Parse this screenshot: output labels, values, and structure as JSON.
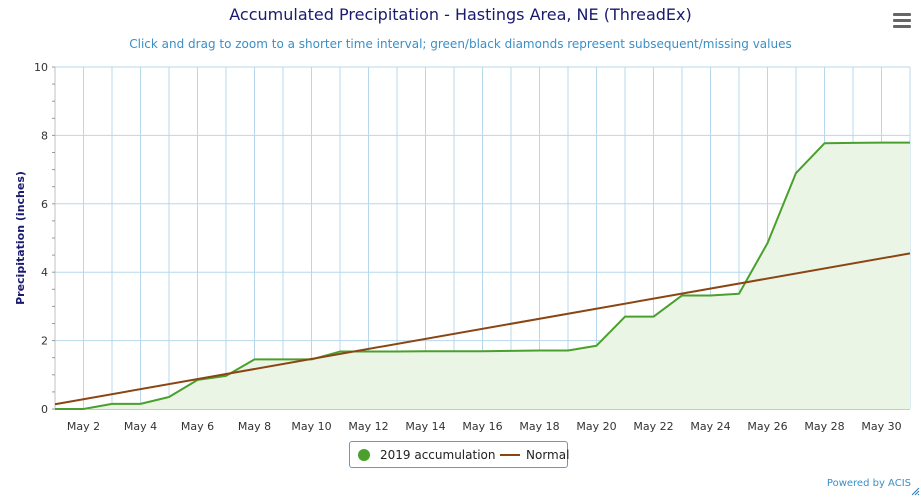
{
  "header": {
    "title": "Accumulated Precipitation - Hastings Area, NE (ThreadEx)",
    "subtitle": "Click and drag to zoom to a shorter time interval; green/black diamonds represent subsequent/missing values",
    "menu_icon": "hamburger-menu-icon"
  },
  "legend": {
    "items": [
      {
        "label": "2019 accumulation",
        "color": "#4aa02c",
        "symbol": "circle"
      },
      {
        "label": "Normal",
        "color": "#8b4513",
        "symbol": "line"
      }
    ]
  },
  "credits": "Powered by ACIS",
  "chart_data": {
    "type": "area",
    "title": "Accumulated Precipitation - Hastings Area, NE (ThreadEx)",
    "subtitle": "Click and drag to zoom to a shorter time interval; green/black diamonds represent subsequent/missing values",
    "xlabel": "",
    "ylabel": "Precipitation (inches)",
    "xlim": [
      1,
      31
    ],
    "ylim": [
      0,
      10
    ],
    "x_ticks": [
      2,
      4,
      6,
      8,
      10,
      12,
      14,
      16,
      18,
      20,
      22,
      24,
      26,
      28,
      30
    ],
    "x_tick_labels": [
      "May 2",
      "May 4",
      "May 6",
      "May 8",
      "May 10",
      "May 12",
      "May 14",
      "May 16",
      "May 18",
      "May 20",
      "May 22",
      "May 24",
      "May 26",
      "May 28",
      "May 30"
    ],
    "y_ticks": [
      0,
      2,
      4,
      6,
      8,
      10
    ],
    "y_tick_labels": [
      "0",
      "2",
      "4",
      "6",
      "8",
      "10"
    ],
    "grid": true,
    "legend_position": "bottom-center",
    "series": [
      {
        "name": "2019 accumulation",
        "color": "#4aa02c",
        "fill": "#eaf5e6",
        "x": [
          1,
          2,
          3,
          4,
          5,
          6,
          7,
          8,
          9,
          10,
          11,
          12,
          13,
          14,
          15,
          16,
          17,
          18,
          19,
          20,
          21,
          22,
          23,
          24,
          25,
          26,
          27,
          28,
          29,
          30,
          31
        ],
        "values": [
          0,
          0,
          0.15,
          0.15,
          0.35,
          0.85,
          0.97,
          1.45,
          1.45,
          1.45,
          1.68,
          1.68,
          1.68,
          1.69,
          1.69,
          1.69,
          1.7,
          1.71,
          1.71,
          1.85,
          2.7,
          2.7,
          3.32,
          3.32,
          3.37,
          4.85,
          6.9,
          7.77,
          7.78,
          7.79,
          7.79
        ]
      },
      {
        "name": "Normal",
        "color": "#8b4513",
        "x": [
          1,
          31
        ],
        "values": [
          0.14,
          4.55
        ]
      }
    ]
  }
}
